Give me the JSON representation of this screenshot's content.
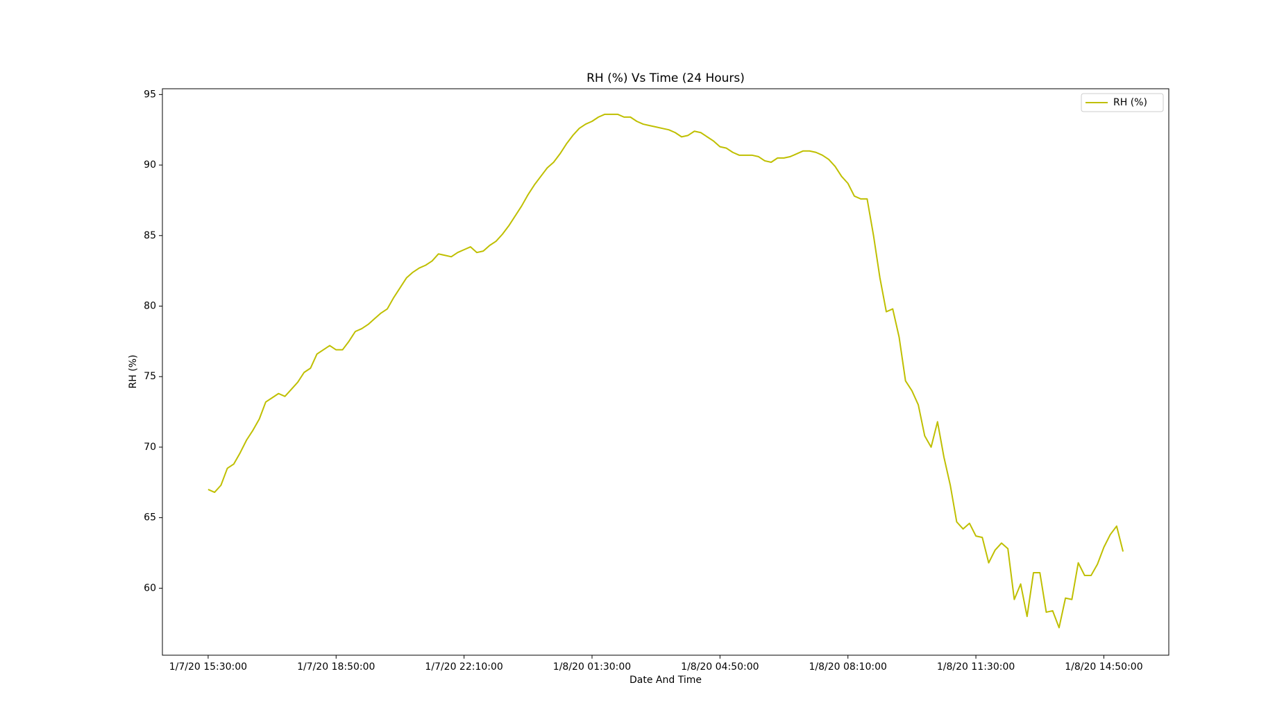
{
  "chart_data": {
    "type": "line",
    "title": "RH (%) Vs Time (24 Hours)",
    "x_label": "Date And Time",
    "y_label": "RH (%)",
    "categories": [
      "1/7/20 15:30:00",
      null,
      null,
      null,
      null,
      null,
      null,
      null,
      null,
      null,
      null,
      null,
      null,
      null,
      null,
      null,
      null,
      null,
      null,
      null,
      "1/7/20 18:50:00",
      null,
      null,
      null,
      null,
      null,
      null,
      null,
      null,
      null,
      null,
      null,
      null,
      null,
      null,
      null,
      null,
      null,
      null,
      null,
      "1/7/20 22:10:00",
      null,
      null,
      null,
      null,
      null,
      null,
      null,
      null,
      null,
      null,
      null,
      null,
      null,
      null,
      null,
      null,
      null,
      null,
      null,
      "1/8/20 01:30:00",
      null,
      null,
      null,
      null,
      null,
      null,
      null,
      null,
      null,
      null,
      null,
      null,
      null,
      null,
      null,
      null,
      null,
      null,
      null,
      "1/8/20 04:50:00",
      null,
      null,
      null,
      null,
      null,
      null,
      null,
      null,
      null,
      null,
      null,
      null,
      null,
      null,
      null,
      null,
      null,
      null,
      null,
      "1/8/20 08:10:00",
      null,
      null,
      null,
      null,
      null,
      null,
      null,
      null,
      null,
      null,
      null,
      null,
      null,
      null,
      null,
      null,
      null,
      null,
      null,
      "1/8/20 11:30:00",
      null,
      null,
      null,
      null,
      null,
      null,
      null,
      null,
      null,
      null,
      null,
      null,
      null,
      null,
      null,
      null,
      null,
      null,
      null,
      "1/8/20 14:50:00",
      null,
      null,
      null
    ],
    "series": [
      {
        "name": "RH (%)",
        "color": "#bfbf00",
        "values": [
          67.0,
          66.8,
          67.3,
          68.5,
          68.8,
          69.6,
          70.5,
          71.2,
          72.0,
          73.2,
          73.5,
          73.8,
          73.6,
          74.1,
          74.6,
          75.3,
          75.6,
          76.6,
          76.9,
          77.2,
          76.9,
          76.9,
          77.5,
          78.2,
          78.4,
          78.7,
          79.1,
          79.5,
          79.8,
          80.6,
          81.3,
          82.0,
          82.4,
          82.7,
          82.9,
          83.2,
          83.7,
          83.6,
          83.5,
          83.8,
          84.0,
          84.2,
          83.8,
          83.9,
          84.3,
          84.6,
          85.1,
          85.7,
          86.4,
          87.1,
          87.9,
          88.6,
          89.2,
          89.8,
          90.2,
          90.8,
          91.5,
          92.1,
          92.6,
          92.9,
          93.1,
          93.4,
          93.6,
          93.6,
          93.6,
          93.4,
          93.4,
          93.1,
          92.9,
          92.8,
          92.7,
          92.6,
          92.5,
          92.3,
          92.0,
          92.1,
          92.4,
          92.3,
          92.0,
          91.7,
          91.3,
          91.2,
          90.9,
          90.7,
          90.7,
          90.7,
          90.6,
          90.3,
          90.2,
          90.5,
          90.5,
          90.6,
          90.8,
          91.0,
          91.0,
          90.9,
          90.7,
          90.4,
          89.9,
          89.2,
          88.7,
          87.8,
          87.6,
          87.6,
          85.0,
          82.0,
          79.6,
          79.8,
          77.8,
          74.7,
          74.0,
          73.0,
          70.8,
          70.0,
          71.8,
          69.3,
          67.3,
          64.7,
          64.2,
          64.6,
          63.7,
          63.6,
          61.8,
          62.7,
          63.2,
          62.8,
          59.2,
          60.3,
          58.0,
          61.1,
          61.1,
          58.3,
          58.4,
          57.2,
          59.3,
          59.2,
          61.8,
          60.9,
          60.9,
          61.7,
          62.9,
          63.8,
          64.4,
          62.6
        ]
      }
    ],
    "ylim": [
      55.25,
      95.41
    ],
    "yticks": [
      60,
      65,
      70,
      75,
      80,
      85,
      90,
      95
    ],
    "legend": "upper right",
    "grid": false
  }
}
